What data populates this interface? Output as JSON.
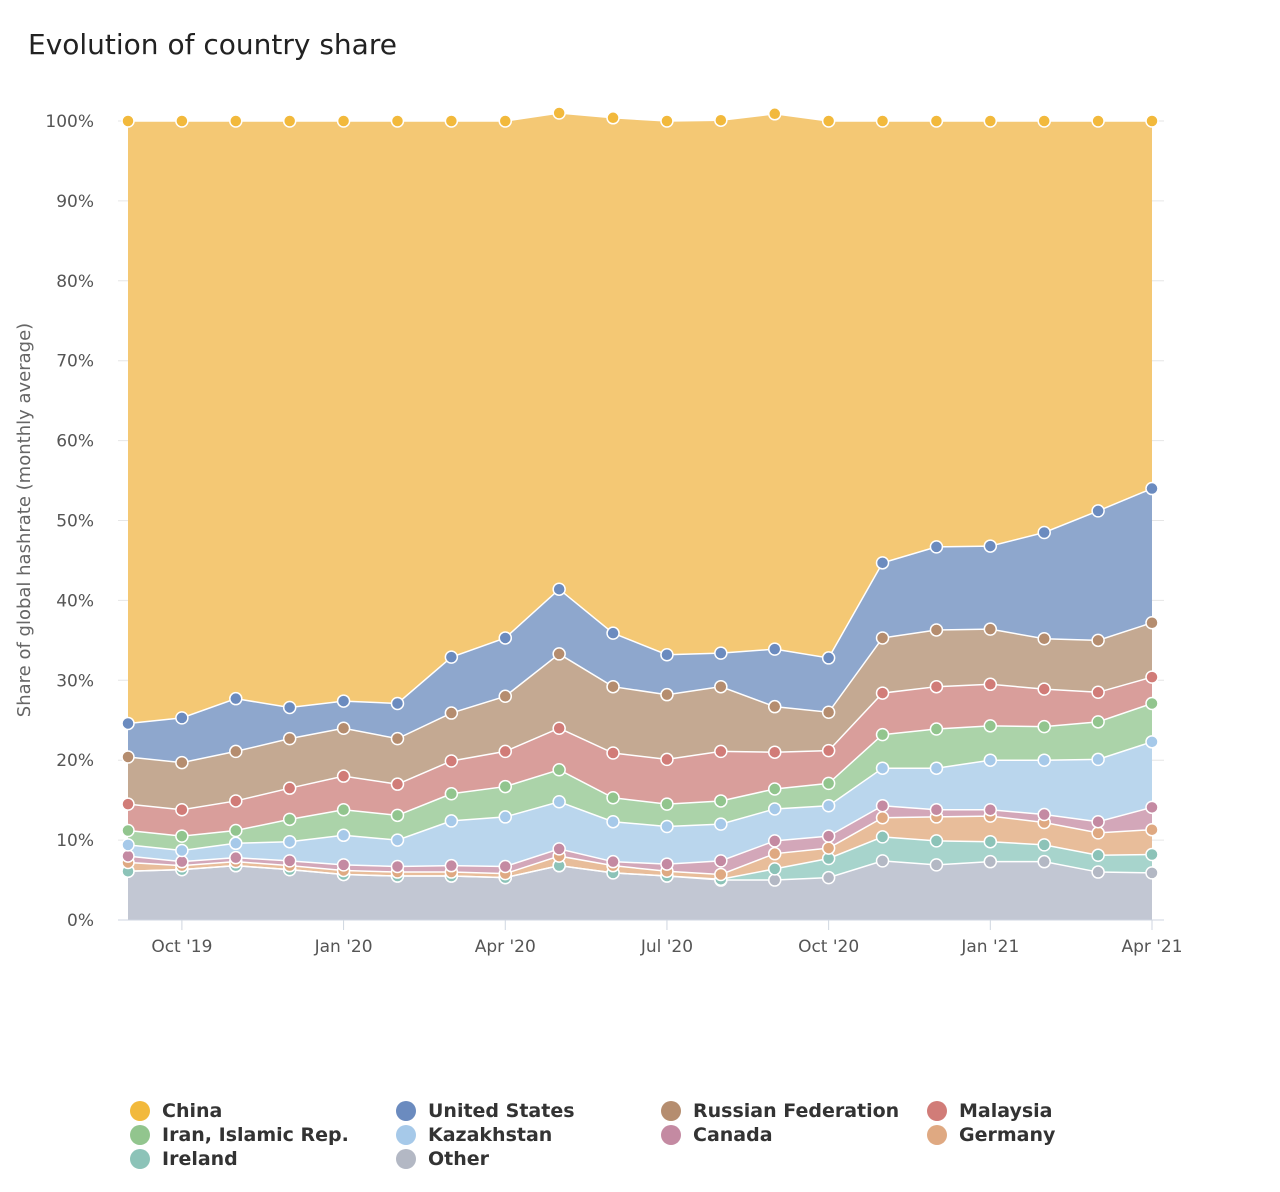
{
  "title": "Evolution of country share",
  "chart_data": {
    "type": "area",
    "stacked": true,
    "title": "Evolution of country share",
    "ylabel": "Share of global hashrate (monthly average)",
    "xlabel": "",
    "ylim": [
      0,
      100
    ],
    "y_ticks": [
      "0%",
      "10%",
      "20%",
      "30%",
      "40%",
      "50%",
      "60%",
      "70%",
      "80%",
      "90%",
      "100%"
    ],
    "y_tick_values": [
      0,
      10,
      20,
      30,
      40,
      50,
      60,
      70,
      80,
      90,
      100
    ],
    "x_months": [
      "2019-09",
      "2019-10",
      "2019-11",
      "2019-12",
      "2020-01",
      "2020-02",
      "2020-03",
      "2020-04",
      "2020-05",
      "2020-06",
      "2020-07",
      "2020-08",
      "2020-09",
      "2020-10",
      "2020-11",
      "2020-12",
      "2021-01",
      "2021-02",
      "2021-03",
      "2021-04"
    ],
    "x_ticks": [
      {
        "label": "Oct '19",
        "month": "2019-10"
      },
      {
        "label": "Jan '20",
        "month": "2020-01"
      },
      {
        "label": "Apr '20",
        "month": "2020-04"
      },
      {
        "label": "Jul '20",
        "month": "2020-07"
      },
      {
        "label": "Oct '20",
        "month": "2020-10"
      },
      {
        "label": "Jan '21",
        "month": "2021-01"
      },
      {
        "label": "Apr '21",
        "month": "2021-04"
      }
    ],
    "grid": true,
    "legend_position": "bottom",
    "series": [
      {
        "name": "Other",
        "color": "#c2c7d3",
        "point": "#b3b8c4",
        "values": [
          6.1,
          6.3,
          6.8,
          6.3,
          5.7,
          5.5,
          5.5,
          5.3,
          6.8,
          5.9,
          5.5,
          5.0,
          5.0,
          5.3,
          7.4,
          6.9,
          7.3,
          7.3,
          6.0,
          5.9
        ]
      },
      {
        "name": "Ireland",
        "color": "#a7d4cc",
        "point": "#8cc3b8",
        "values": [
          0,
          0,
          0,
          0,
          0,
          0,
          0,
          0,
          0,
          0,
          0,
          0.1,
          1.4,
          2.4,
          3.0,
          3.0,
          2.5,
          2.1,
          2.1,
          2.3
        ]
      },
      {
        "name": "Germany",
        "color": "#e8bd9a",
        "point": "#dfa982",
        "values": [
          1.1,
          0.5,
          0.5,
          0.5,
          0.5,
          0.5,
          0.5,
          0.5,
          1.2,
          0.9,
          0.6,
          0.6,
          1.9,
          1.3,
          2.4,
          3.0,
          3.2,
          2.8,
          2.8,
          3.1
        ]
      },
      {
        "name": "Canada",
        "color": "#d3a7b9",
        "point": "#c48aa2",
        "values": [
          0.8,
          0.5,
          0.5,
          0.6,
          0.7,
          0.7,
          0.8,
          0.9,
          0.9,
          0.5,
          0.9,
          1.7,
          1.6,
          1.5,
          1.5,
          0.9,
          0.8,
          1.0,
          1.4,
          2.8
        ]
      },
      {
        "name": "Kazakhstan",
        "color": "#bad6ed",
        "point": "#a6c9e9",
        "values": [
          1.4,
          1.4,
          1.8,
          2.4,
          3.7,
          3.3,
          5.6,
          6.2,
          5.9,
          5.0,
          4.7,
          4.6,
          4.0,
          3.8,
          4.7,
          5.2,
          6.2,
          6.8,
          7.8,
          8.2
        ]
      },
      {
        "name": "Iran, Islamic Rep.",
        "color": "#abd3a9",
        "point": "#92c58e",
        "values": [
          1.8,
          1.8,
          1.6,
          2.8,
          3.2,
          3.1,
          3.4,
          3.8,
          4.0,
          3.0,
          2.8,
          2.9,
          2.5,
          2.8,
          4.2,
          4.9,
          4.3,
          4.2,
          4.7,
          4.8
        ]
      },
      {
        "name": "Malaysia",
        "color": "#d99e9b",
        "point": "#d17c78",
        "values": [
          3.3,
          3.3,
          3.7,
          3.9,
          4.2,
          3.9,
          4.1,
          4.4,
          5.2,
          5.6,
          5.6,
          6.2,
          4.6,
          4.1,
          5.2,
          5.3,
          5.2,
          4.7,
          3.7,
          3.3
        ]
      },
      {
        "name": "Russian Federation",
        "color": "#c4a992",
        "point": "#b58d6f",
        "values": [
          5.9,
          5.9,
          6.2,
          6.2,
          6.0,
          5.7,
          6.0,
          6.9,
          9.3,
          8.3,
          8.1,
          8.1,
          5.7,
          4.8,
          6.9,
          7.1,
          6.9,
          6.3,
          6.5,
          6.8
        ]
      },
      {
        "name": "United States",
        "color": "#8ea7cd",
        "point": "#6b8bbf",
        "values": [
          4.2,
          5.6,
          6.6,
          3.9,
          3.4,
          4.4,
          7.0,
          7.3,
          8.1,
          6.7,
          5.0,
          4.2,
          7.2,
          6.8,
          9.4,
          10.4,
          10.4,
          13.3,
          16.2,
          16.8
        ]
      },
      {
        "name": "China",
        "color": "#f4c874",
        "point": "#f2b93c",
        "values": [
          75.4,
          74.7,
          72.3,
          73.4,
          72.6,
          72.9,
          67.1,
          64.7,
          59.6,
          64.5,
          66.8,
          66.7,
          67.0,
          67.2,
          55.3,
          53.3,
          53.2,
          51.5,
          48.8,
          46.0
        ]
      }
    ],
    "legend": [
      {
        "name": "China",
        "color": "#f2b93c"
      },
      {
        "name": "United States",
        "color": "#6b8bbf"
      },
      {
        "name": "Russian Federation",
        "color": "#b58d6f"
      },
      {
        "name": "Malaysia",
        "color": "#d17c78"
      },
      {
        "name": "Iran, Islamic Rep.",
        "color": "#92c58e"
      },
      {
        "name": "Kazakhstan",
        "color": "#a6c9e9"
      },
      {
        "name": "Canada",
        "color": "#c48aa2"
      },
      {
        "name": "Germany",
        "color": "#dfa982"
      },
      {
        "name": "Ireland",
        "color": "#8cc3b8"
      },
      {
        "name": "Other",
        "color": "#b3b8c4"
      }
    ]
  }
}
